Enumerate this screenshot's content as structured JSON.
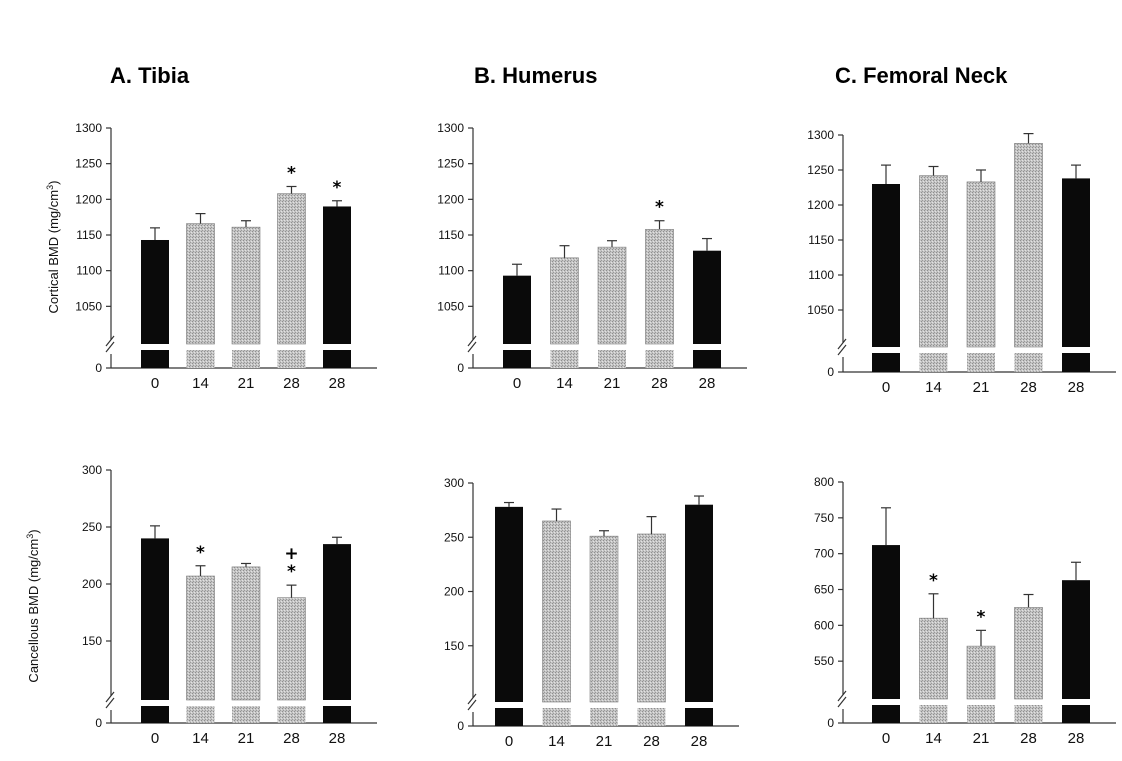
{
  "panels": [
    {
      "title": "A.  Tibia"
    },
    {
      "title": "B.  Humerus"
    },
    {
      "title": "C.  Femoral Neck"
    }
  ],
  "y_labels": {
    "cortical": {
      "main": "Cortical BMD (mg/cm",
      "sup": "3",
      "close": ")"
    },
    "cancellous": {
      "main": "Cancellous BMD (mg/cm",
      "sup": "3",
      "close": ")"
    }
  },
  "colors": {
    "control": "#0a0a0a",
    "treated": "#b9b9b9"
  },
  "chart_data": [
    {
      "type": "bar",
      "panel": "A.  Tibia",
      "row": "cortical",
      "categories": [
        "0",
        "14",
        "21",
        "28",
        "28"
      ],
      "values": [
        1143,
        1166,
        1161,
        1208,
        1190
      ],
      "errors": [
        17,
        14,
        9,
        10,
        8
      ],
      "fill": [
        "control",
        "treated",
        "treated",
        "treated",
        "control"
      ],
      "markers": [
        "",
        "",
        "",
        "*",
        "*"
      ],
      "ylim": [
        1000,
        1300
      ],
      "yticks": [
        1050,
        1100,
        1150,
        1200,
        1250,
        1300
      ],
      "ylabel": "Cortical BMD (mg/cm3)",
      "axis_break": true
    },
    {
      "type": "bar",
      "panel": "B.  Humerus",
      "row": "cortical",
      "categories": [
        "0",
        "14",
        "21",
        "28",
        "28"
      ],
      "values": [
        1093,
        1118,
        1133,
        1158,
        1128
      ],
      "errors": [
        16,
        17,
        9,
        12,
        17
      ],
      "fill": [
        "control",
        "treated",
        "treated",
        "treated",
        "control"
      ],
      "markers": [
        "",
        "",
        "",
        "*",
        ""
      ],
      "ylim": [
        1000,
        1300
      ],
      "yticks": [
        1050,
        1100,
        1150,
        1200,
        1250,
        1300
      ],
      "axis_break": true
    },
    {
      "type": "bar",
      "panel": "C.  Femoral Neck",
      "row": "cortical",
      "categories": [
        "0",
        "14",
        "21",
        "28",
        "28"
      ],
      "values": [
        1230,
        1242,
        1233,
        1288,
        1238
      ],
      "errors": [
        27,
        13,
        17,
        14,
        19
      ],
      "fill": [
        "control",
        "treated",
        "treated",
        "treated",
        "control"
      ],
      "markers": [
        "",
        "",
        "",
        "",
        ""
      ],
      "ylim": [
        1000,
        1300
      ],
      "yticks": [
        1050,
        1100,
        1150,
        1200,
        1250,
        1300
      ],
      "axis_break": true
    },
    {
      "type": "bar",
      "panel": "A.  Tibia",
      "row": "cancellous",
      "categories": [
        "0",
        "14",
        "21",
        "28",
        "28"
      ],
      "values": [
        240,
        207,
        215,
        188,
        235
      ],
      "errors": [
        11,
        9,
        3,
        11,
        6
      ],
      "fill": [
        "control",
        "treated",
        "treated",
        "treated",
        "control"
      ],
      "markers": [
        "",
        "*",
        "",
        "+\n*",
        ""
      ],
      "ylim": [
        100,
        300
      ],
      "yticks": [
        150,
        200,
        250,
        300
      ],
      "ylabel": "Cancellous BMD (mg/cm3)",
      "axis_break": true
    },
    {
      "type": "bar",
      "panel": "B.  Humerus",
      "row": "cancellous",
      "categories": [
        "0",
        "14",
        "21",
        "28",
        "28"
      ],
      "values": [
        278,
        265,
        251,
        253,
        280
      ],
      "errors": [
        4,
        11,
        5,
        16,
        8
      ],
      "fill": [
        "control",
        "treated",
        "treated",
        "treated",
        "control"
      ],
      "markers": [
        "",
        "",
        "",
        "",
        ""
      ],
      "ylim": [
        100,
        300
      ],
      "yticks": [
        150,
        200,
        250,
        300
      ],
      "axis_break": true
    },
    {
      "type": "bar",
      "panel": "C.  Femoral Neck",
      "row": "cancellous",
      "categories": [
        "0",
        "14",
        "21",
        "28",
        "28"
      ],
      "values": [
        712,
        610,
        571,
        625,
        663
      ],
      "errors": [
        52,
        34,
        22,
        18,
        25
      ],
      "fill": [
        "control",
        "treated",
        "treated",
        "treated",
        "control"
      ],
      "markers": [
        "",
        "*",
        "*",
        "",
        ""
      ],
      "ylim": [
        500,
        800
      ],
      "yticks": [
        550,
        600,
        650,
        700,
        750,
        800
      ],
      "axis_break": true
    }
  ]
}
